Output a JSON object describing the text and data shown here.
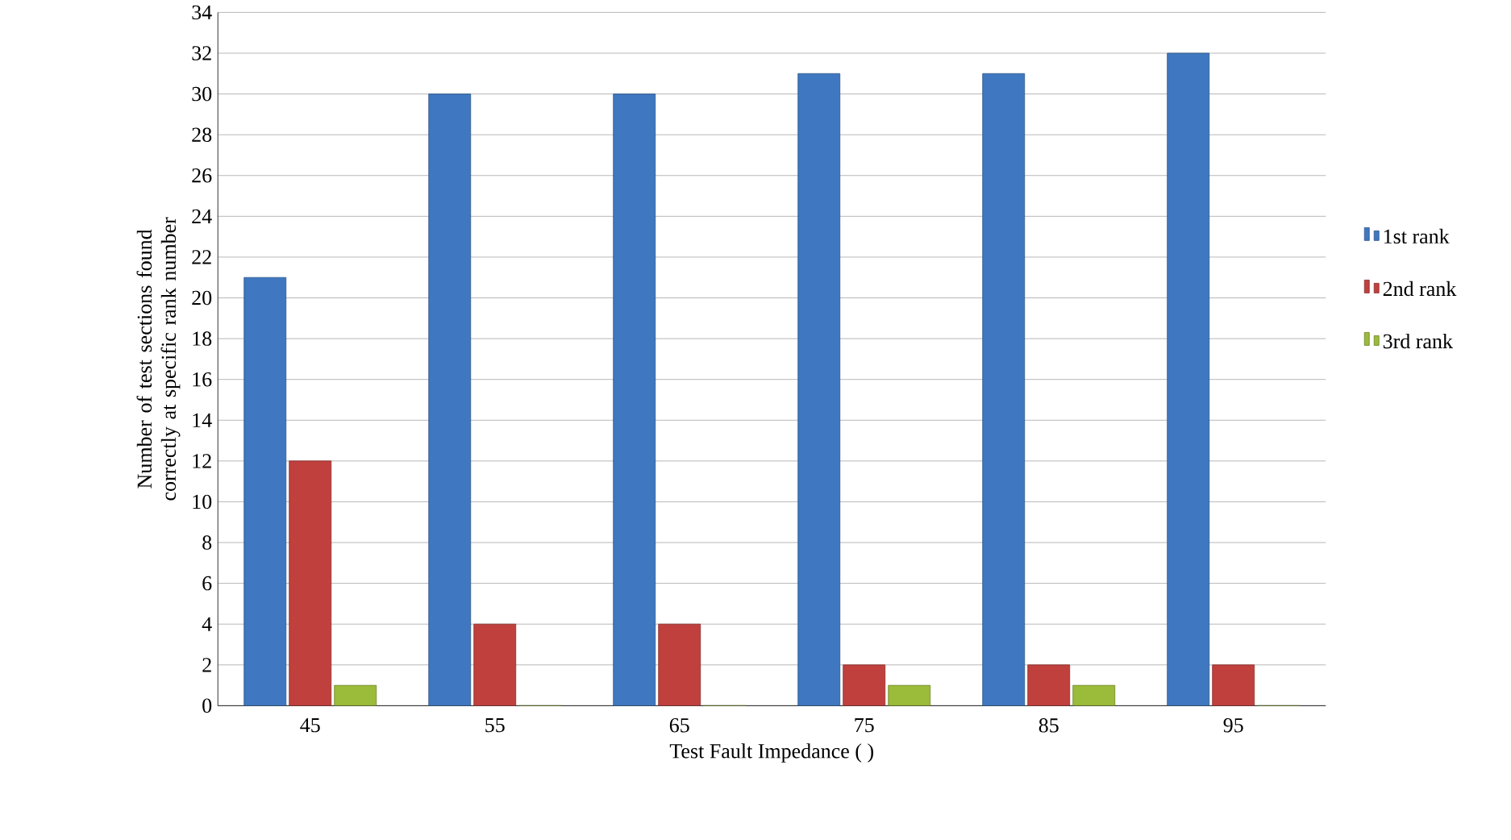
{
  "chart_data": {
    "type": "bar",
    "xlabel": "Test Fault Impedance (  )",
    "ylabel": "Number of test sections found correctly at specific rank number",
    "categories": [
      "45",
      "55",
      "65",
      "75",
      "85",
      "95"
    ],
    "series": [
      {
        "name": "1st rank",
        "color": "#3f78c0",
        "values": [
          21,
          30,
          30,
          31,
          31,
          32
        ]
      },
      {
        "name": "2nd rank",
        "color": "#c0403d",
        "values": [
          12,
          4,
          4,
          2,
          2,
          2
        ]
      },
      {
        "name": "3rd rank",
        "color": "#9bbb3a",
        "values": [
          1,
          0,
          0,
          1,
          1,
          0
        ]
      }
    ],
    "ylim": [
      0,
      34
    ],
    "yticks": [
      0,
      2,
      4,
      6,
      8,
      10,
      12,
      14,
      16,
      18,
      20,
      22,
      24,
      26,
      28,
      30,
      32,
      34
    ],
    "grid": "y",
    "legend": "right"
  }
}
